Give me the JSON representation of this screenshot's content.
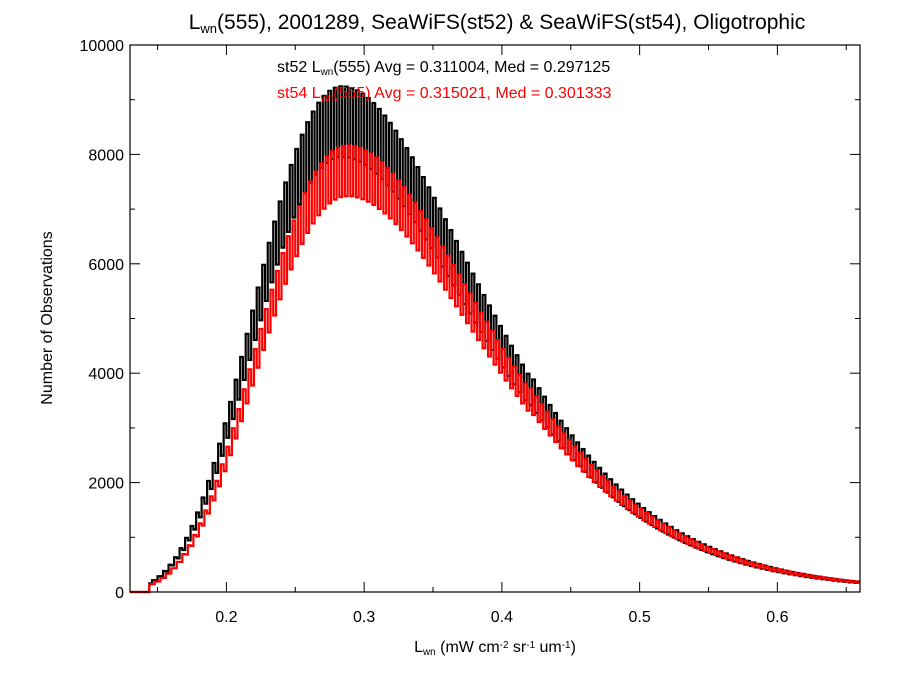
{
  "chart_data": {
    "type": "histogram",
    "title": {
      "parts": [
        {
          "text": "L",
          "sub": false
        },
        {
          "text": "wn",
          "sub": true
        },
        {
          "text": "(555), 2001289, SeaWiFS(st52) & SeaWiFS(st54), Oligotrophic",
          "sub": false
        }
      ]
    },
    "xlabel": {
      "parts": [
        {
          "text": "L",
          "sup": false,
          "sub": false
        },
        {
          "text": "wn",
          "sub": true
        },
        {
          "text": " (mW cm",
          "sub": false
        },
        {
          "text": "-2",
          "sup": true
        },
        {
          "text": " sr",
          "sub": false
        },
        {
          "text": "-1",
          "sup": true
        },
        {
          "text": " um",
          "sub": false
        },
        {
          "text": "-1",
          "sup": true
        },
        {
          "text": ")",
          "sub": false
        }
      ]
    },
    "ylabel": "Number of Observations",
    "xlim": [
      0.13,
      0.66
    ],
    "ylim": [
      0,
      10000
    ],
    "x_ticks": [
      0.2,
      0.3,
      0.4,
      0.5,
      0.6
    ],
    "x_tick_labels": [
      "0.2",
      "0.3",
      "0.4",
      "0.5",
      "0.6"
    ],
    "y_ticks": [
      0,
      2000,
      4000,
      6000,
      8000,
      10000
    ],
    "y_tick_labels": [
      "0",
      "2000",
      "4000",
      "6000",
      "8000",
      "10000"
    ],
    "bin_width": 0.002,
    "series": [
      {
        "name": "st52",
        "color": "#000000",
        "stat_label": {
          "parts": [
            {
              "text": "st52 L",
              "sub": false
            },
            {
              "text": "wn",
              "sub": true
            },
            {
              "text": "(555) Avg = 0.311004, Med = 0.297125",
              "sub": false
            }
          ]
        },
        "avg": 0.311004,
        "median": 0.297125,
        "peak_x": 0.284,
        "peak_y": 8600
      },
      {
        "name": "st54",
        "color": "#ff0000",
        "stat_label": {
          "parts": [
            {
              "text": "st54 L",
              "sub": false
            },
            {
              "text": "wn",
              "sub": true
            },
            {
              "text": "(555) Avg = 0.315021, Med = 0.301333",
              "sub": false
            }
          ]
        },
        "avg": 0.315021,
        "median": 0.301333,
        "peak_x": 0.288,
        "peak_y": 7700
      }
    ]
  }
}
